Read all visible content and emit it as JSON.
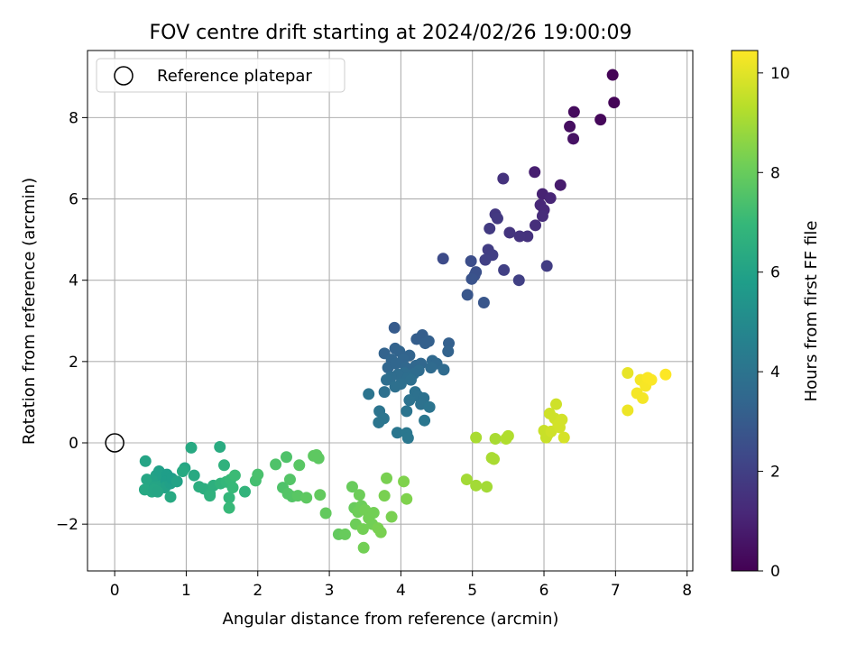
{
  "chart_data": {
    "type": "scatter",
    "title": "FOV centre drift starting at 2024/02/26 19:00:09",
    "xlabel": "Angular distance from reference (arcmin)",
    "ylabel": "Rotation from reference (arcmin)",
    "xlim": [
      -0.38,
      8.08
    ],
    "ylim": [
      -3.15,
      9.65
    ],
    "xticks": [
      0,
      1,
      2,
      3,
      4,
      5,
      6,
      7,
      8
    ],
    "yticks": [
      -2,
      0,
      2,
      4,
      6,
      8
    ],
    "grid": true,
    "legend": {
      "placement": "top-left",
      "entries": [
        "Reference platepar"
      ]
    },
    "reference_point": {
      "x": 0,
      "y": 0,
      "label": "Reference platepar"
    },
    "colorbar": {
      "label": "Hours from first FF file",
      "colormap": "viridis",
      "range": [
        0,
        10.45
      ],
      "ticks": [
        0,
        2,
        4,
        6,
        8,
        10
      ]
    },
    "colormap_stops": [
      "#440154",
      "#482878",
      "#3e4989",
      "#31688e",
      "#26828e",
      "#1f9e89",
      "#35b779",
      "#6ece58",
      "#b5de2b",
      "#fde725"
    ],
    "points": [
      {
        "x": 6.96,
        "y": 9.05,
        "c": 0.05
      },
      {
        "x": 6.98,
        "y": 8.37,
        "c": 0.1
      },
      {
        "x": 6.79,
        "y": 7.95,
        "c": 0.2
      },
      {
        "x": 6.42,
        "y": 8.14,
        "c": 0.3
      },
      {
        "x": 6.36,
        "y": 7.78,
        "c": 0.4
      },
      {
        "x": 6.41,
        "y": 7.48,
        "c": 0.5
      },
      {
        "x": 6.23,
        "y": 6.34,
        "c": 0.8
      },
      {
        "x": 5.87,
        "y": 6.66,
        "c": 0.9
      },
      {
        "x": 5.98,
        "y": 6.12,
        "c": 1.0
      },
      {
        "x": 6.09,
        "y": 6.02,
        "c": 1.1
      },
      {
        "x": 5.95,
        "y": 5.85,
        "c": 1.15
      },
      {
        "x": 6.0,
        "y": 5.73,
        "c": 1.2
      },
      {
        "x": 5.98,
        "y": 5.58,
        "c": 1.3
      },
      {
        "x": 5.88,
        "y": 5.35,
        "c": 1.4
      },
      {
        "x": 5.77,
        "y": 5.08,
        "c": 1.5
      },
      {
        "x": 5.66,
        "y": 5.08,
        "c": 1.55
      },
      {
        "x": 5.52,
        "y": 5.17,
        "c": 1.6
      },
      {
        "x": 5.43,
        "y": 6.5,
        "c": 1.5
      },
      {
        "x": 5.32,
        "y": 5.62,
        "c": 1.7
      },
      {
        "x": 5.35,
        "y": 5.52,
        "c": 1.75
      },
      {
        "x": 5.24,
        "y": 5.27,
        "c": 1.8
      },
      {
        "x": 5.22,
        "y": 4.75,
        "c": 1.9
      },
      {
        "x": 5.28,
        "y": 4.62,
        "c": 1.95
      },
      {
        "x": 5.18,
        "y": 4.5,
        "c": 2.0
      },
      {
        "x": 5.44,
        "y": 4.25,
        "c": 2.0
      },
      {
        "x": 5.65,
        "y": 4.0,
        "c": 2.0
      },
      {
        "x": 6.04,
        "y": 4.35,
        "c": 1.9
      },
      {
        "x": 4.59,
        "y": 4.53,
        "c": 2.4
      },
      {
        "x": 4.98,
        "y": 4.47,
        "c": 2.5
      },
      {
        "x": 5.03,
        "y": 4.12,
        "c": 2.6
      },
      {
        "x": 5.05,
        "y": 4.2,
        "c": 2.6
      },
      {
        "x": 4.99,
        "y": 4.03,
        "c": 2.7
      },
      {
        "x": 4.93,
        "y": 3.64,
        "c": 2.8
      },
      {
        "x": 5.16,
        "y": 3.45,
        "c": 2.8
      },
      {
        "x": 3.91,
        "y": 2.83,
        "c": 3.0
      },
      {
        "x": 4.3,
        "y": 2.65,
        "c": 3.1
      },
      {
        "x": 4.22,
        "y": 2.55,
        "c": 3.1
      },
      {
        "x": 4.34,
        "y": 2.45,
        "c": 3.2
      },
      {
        "x": 4.39,
        "y": 2.5,
        "c": 3.2
      },
      {
        "x": 4.67,
        "y": 2.45,
        "c": 3.2
      },
      {
        "x": 4.66,
        "y": 2.25,
        "c": 3.3
      },
      {
        "x": 3.92,
        "y": 2.32,
        "c": 3.3
      },
      {
        "x": 3.77,
        "y": 2.2,
        "c": 3.3
      },
      {
        "x": 3.98,
        "y": 2.25,
        "c": 3.35
      },
      {
        "x": 4.12,
        "y": 2.15,
        "c": 3.35
      },
      {
        "x": 4.03,
        "y": 2.05,
        "c": 3.4
      },
      {
        "x": 3.87,
        "y": 2.05,
        "c": 3.4
      },
      {
        "x": 3.82,
        "y": 1.85,
        "c": 3.45
      },
      {
        "x": 3.93,
        "y": 1.95,
        "c": 3.45
      },
      {
        "x": 4.07,
        "y": 1.85,
        "c": 3.5
      },
      {
        "x": 4.21,
        "y": 1.9,
        "c": 3.5
      },
      {
        "x": 4.28,
        "y": 1.95,
        "c": 3.5
      },
      {
        "x": 4.44,
        "y": 2.02,
        "c": 3.55
      },
      {
        "x": 4.5,
        "y": 1.95,
        "c": 3.55
      },
      {
        "x": 4.6,
        "y": 1.8,
        "c": 3.6
      },
      {
        "x": 4.42,
        "y": 1.85,
        "c": 3.6
      },
      {
        "x": 4.25,
        "y": 1.78,
        "c": 3.65
      },
      {
        "x": 4.18,
        "y": 1.7,
        "c": 3.65
      },
      {
        "x": 4.05,
        "y": 1.72,
        "c": 3.7
      },
      {
        "x": 3.96,
        "y": 1.68,
        "c": 3.7
      },
      {
        "x": 3.86,
        "y": 1.62,
        "c": 3.7
      },
      {
        "x": 3.8,
        "y": 1.55,
        "c": 3.75
      },
      {
        "x": 4.1,
        "y": 1.6,
        "c": 3.75
      },
      {
        "x": 4.14,
        "y": 1.55,
        "c": 3.8
      },
      {
        "x": 4.0,
        "y": 1.45,
        "c": 3.8
      },
      {
        "x": 3.92,
        "y": 1.38,
        "c": 3.85
      },
      {
        "x": 3.77,
        "y": 1.25,
        "c": 3.85
      },
      {
        "x": 4.2,
        "y": 1.25,
        "c": 3.9
      },
      {
        "x": 4.24,
        "y": 1.15,
        "c": 3.9
      },
      {
        "x": 4.32,
        "y": 1.1,
        "c": 3.9
      },
      {
        "x": 4.12,
        "y": 1.05,
        "c": 3.95
      },
      {
        "x": 4.28,
        "y": 0.95,
        "c": 3.95
      },
      {
        "x": 4.4,
        "y": 0.88,
        "c": 4.0
      },
      {
        "x": 4.08,
        "y": 0.78,
        "c": 4.0
      },
      {
        "x": 3.7,
        "y": 0.78,
        "c": 4.0
      },
      {
        "x": 3.76,
        "y": 0.6,
        "c": 4.05
      },
      {
        "x": 3.69,
        "y": 0.5,
        "c": 4.05
      },
      {
        "x": 4.33,
        "y": 0.55,
        "c": 4.1
      },
      {
        "x": 3.95,
        "y": 0.25,
        "c": 4.1
      },
      {
        "x": 4.08,
        "y": 0.24,
        "c": 4.15
      },
      {
        "x": 4.1,
        "y": 0.12,
        "c": 4.15
      },
      {
        "x": 3.55,
        "y": 1.2,
        "c": 4.0
      },
      {
        "x": 0.43,
        "y": -0.45,
        "c": 6.1
      },
      {
        "x": 0.45,
        "y": -0.9,
        "c": 6.2
      },
      {
        "x": 0.5,
        "y": -1.0,
        "c": 6.2
      },
      {
        "x": 0.42,
        "y": -1.15,
        "c": 6.25
      },
      {
        "x": 0.52,
        "y": -1.2,
        "c": 6.25
      },
      {
        "x": 0.58,
        "y": -0.8,
        "c": 6.0
      },
      {
        "x": 0.6,
        "y": -0.95,
        "c": 6.0
      },
      {
        "x": 0.62,
        "y": -0.7,
        "c": 5.9
      },
      {
        "x": 0.68,
        "y": -0.85,
        "c": 5.9
      },
      {
        "x": 0.66,
        "y": -1.05,
        "c": 6.1
      },
      {
        "x": 0.73,
        "y": -0.78,
        "c": 5.8
      },
      {
        "x": 0.72,
        "y": -0.95,
        "c": 5.8
      },
      {
        "x": 0.7,
        "y": -1.1,
        "c": 6.0
      },
      {
        "x": 0.78,
        "y": -1.0,
        "c": 5.9
      },
      {
        "x": 0.8,
        "y": -0.88,
        "c": 5.8
      },
      {
        "x": 0.56,
        "y": -1.08,
        "c": 6.1
      },
      {
        "x": 0.55,
        "y": -1.15,
        "c": 6.2
      },
      {
        "x": 0.6,
        "y": -1.2,
        "c": 6.15
      },
      {
        "x": 0.78,
        "y": -1.33,
        "c": 6.3
      },
      {
        "x": 0.87,
        "y": -0.95,
        "c": 6.0
      },
      {
        "x": 0.98,
        "y": -0.62,
        "c": 6.2
      },
      {
        "x": 0.95,
        "y": -0.7,
        "c": 6.3
      },
      {
        "x": 1.07,
        "y": -0.12,
        "c": 6.3
      },
      {
        "x": 1.11,
        "y": -0.8,
        "c": 6.3
      },
      {
        "x": 1.18,
        "y": -1.08,
        "c": 6.5
      },
      {
        "x": 1.25,
        "y": -1.13,
        "c": 6.5
      },
      {
        "x": 1.33,
        "y": -1.25,
        "c": 6.6
      },
      {
        "x": 1.38,
        "y": -1.05,
        "c": 6.6
      },
      {
        "x": 1.33,
        "y": -1.3,
        "c": 6.7
      },
      {
        "x": 1.47,
        "y": -0.1,
        "c": 6.4
      },
      {
        "x": 1.48,
        "y": -1.0,
        "c": 6.8
      },
      {
        "x": 1.53,
        "y": -0.55,
        "c": 6.7
      },
      {
        "x": 1.56,
        "y": -0.96,
        "c": 6.9
      },
      {
        "x": 1.6,
        "y": -1.35,
        "c": 6.9
      },
      {
        "x": 1.62,
        "y": -0.9,
        "c": 7.0
      },
      {
        "x": 1.6,
        "y": -1.6,
        "c": 7.0
      },
      {
        "x": 1.65,
        "y": -1.1,
        "c": 7.0
      },
      {
        "x": 1.68,
        "y": -0.8,
        "c": 7.1
      },
      {
        "x": 1.82,
        "y": -1.2,
        "c": 6.8
      },
      {
        "x": 1.97,
        "y": -0.93,
        "c": 7.3
      },
      {
        "x": 2.0,
        "y": -0.78,
        "c": 7.4
      },
      {
        "x": 2.25,
        "y": -0.53,
        "c": 7.5
      },
      {
        "x": 2.35,
        "y": -1.1,
        "c": 7.5
      },
      {
        "x": 2.4,
        "y": -0.35,
        "c": 7.5
      },
      {
        "x": 2.45,
        "y": -0.9,
        "c": 7.6
      },
      {
        "x": 2.42,
        "y": -1.25,
        "c": 7.6
      },
      {
        "x": 2.48,
        "y": -1.32,
        "c": 7.6
      },
      {
        "x": 2.56,
        "y": -1.3,
        "c": 7.7
      },
      {
        "x": 2.58,
        "y": -0.55,
        "c": 7.7
      },
      {
        "x": 2.68,
        "y": -1.35,
        "c": 7.8
      },
      {
        "x": 2.78,
        "y": -0.32,
        "c": 7.8
      },
      {
        "x": 2.82,
        "y": -0.3,
        "c": 7.8
      },
      {
        "x": 2.85,
        "y": -0.38,
        "c": 7.8
      },
      {
        "x": 2.87,
        "y": -1.28,
        "c": 7.9
      },
      {
        "x": 2.95,
        "y": -1.73,
        "c": 7.9
      },
      {
        "x": 3.13,
        "y": -2.25,
        "c": 7.9
      },
      {
        "x": 3.22,
        "y": -2.25,
        "c": 8.0
      },
      {
        "x": 3.32,
        "y": -1.08,
        "c": 8.0
      },
      {
        "x": 3.35,
        "y": -1.6,
        "c": 8.0
      },
      {
        "x": 3.37,
        "y": -2.0,
        "c": 8.1
      },
      {
        "x": 3.4,
        "y": -1.7,
        "c": 8.1
      },
      {
        "x": 3.42,
        "y": -1.28,
        "c": 8.1
      },
      {
        "x": 3.45,
        "y": -1.55,
        "c": 8.1
      },
      {
        "x": 3.47,
        "y": -2.12,
        "c": 8.2
      },
      {
        "x": 3.5,
        "y": -1.65,
        "c": 8.2
      },
      {
        "x": 3.48,
        "y": -2.58,
        "c": 8.2
      },
      {
        "x": 3.55,
        "y": -1.85,
        "c": 8.2
      },
      {
        "x": 3.6,
        "y": -2.0,
        "c": 8.2
      },
      {
        "x": 3.62,
        "y": -1.72,
        "c": 8.2
      },
      {
        "x": 3.68,
        "y": -2.1,
        "c": 8.3
      },
      {
        "x": 3.72,
        "y": -2.2,
        "c": 8.3
      },
      {
        "x": 3.77,
        "y": -1.3,
        "c": 8.3
      },
      {
        "x": 3.8,
        "y": -0.87,
        "c": 8.3
      },
      {
        "x": 3.87,
        "y": -1.82,
        "c": 8.3
      },
      {
        "x": 4.04,
        "y": -0.95,
        "c": 8.4
      },
      {
        "x": 4.08,
        "y": -1.38,
        "c": 8.4
      },
      {
        "x": 4.92,
        "y": -0.9,
        "c": 9.0
      },
      {
        "x": 5.05,
        "y": -1.05,
        "c": 9.0
      },
      {
        "x": 5.2,
        "y": -1.08,
        "c": 9.0
      },
      {
        "x": 5.05,
        "y": 0.13,
        "c": 9.1
      },
      {
        "x": 5.27,
        "y": -0.37,
        "c": 9.1
      },
      {
        "x": 5.3,
        "y": -0.4,
        "c": 9.1
      },
      {
        "x": 5.32,
        "y": 0.1,
        "c": 9.1
      },
      {
        "x": 5.47,
        "y": 0.1,
        "c": 9.2
      },
      {
        "x": 5.5,
        "y": 0.17,
        "c": 9.2
      },
      {
        "x": 6.0,
        "y": 0.3,
        "c": 9.6
      },
      {
        "x": 6.03,
        "y": 0.13,
        "c": 9.6
      },
      {
        "x": 6.05,
        "y": 0.2,
        "c": 9.6
      },
      {
        "x": 6.08,
        "y": 0.72,
        "c": 9.7
      },
      {
        "x": 6.1,
        "y": 0.28,
        "c": 9.7
      },
      {
        "x": 6.15,
        "y": 0.6,
        "c": 9.7
      },
      {
        "x": 6.17,
        "y": 0.95,
        "c": 9.7
      },
      {
        "x": 6.2,
        "y": 0.45,
        "c": 9.75
      },
      {
        "x": 6.22,
        "y": 0.38,
        "c": 9.75
      },
      {
        "x": 6.25,
        "y": 0.57,
        "c": 9.75
      },
      {
        "x": 6.28,
        "y": 0.13,
        "c": 9.8
      },
      {
        "x": 7.17,
        "y": 1.72,
        "c": 10.1
      },
      {
        "x": 7.17,
        "y": 0.8,
        "c": 10.2
      },
      {
        "x": 7.3,
        "y": 1.22,
        "c": 10.3
      },
      {
        "x": 7.35,
        "y": 1.55,
        "c": 10.3
      },
      {
        "x": 7.38,
        "y": 1.1,
        "c": 10.3
      },
      {
        "x": 7.42,
        "y": 1.4,
        "c": 10.35
      },
      {
        "x": 7.45,
        "y": 1.6,
        "c": 10.4
      },
      {
        "x": 7.5,
        "y": 1.55,
        "c": 10.4
      },
      {
        "x": 7.7,
        "y": 1.68,
        "c": 10.45
      }
    ]
  }
}
